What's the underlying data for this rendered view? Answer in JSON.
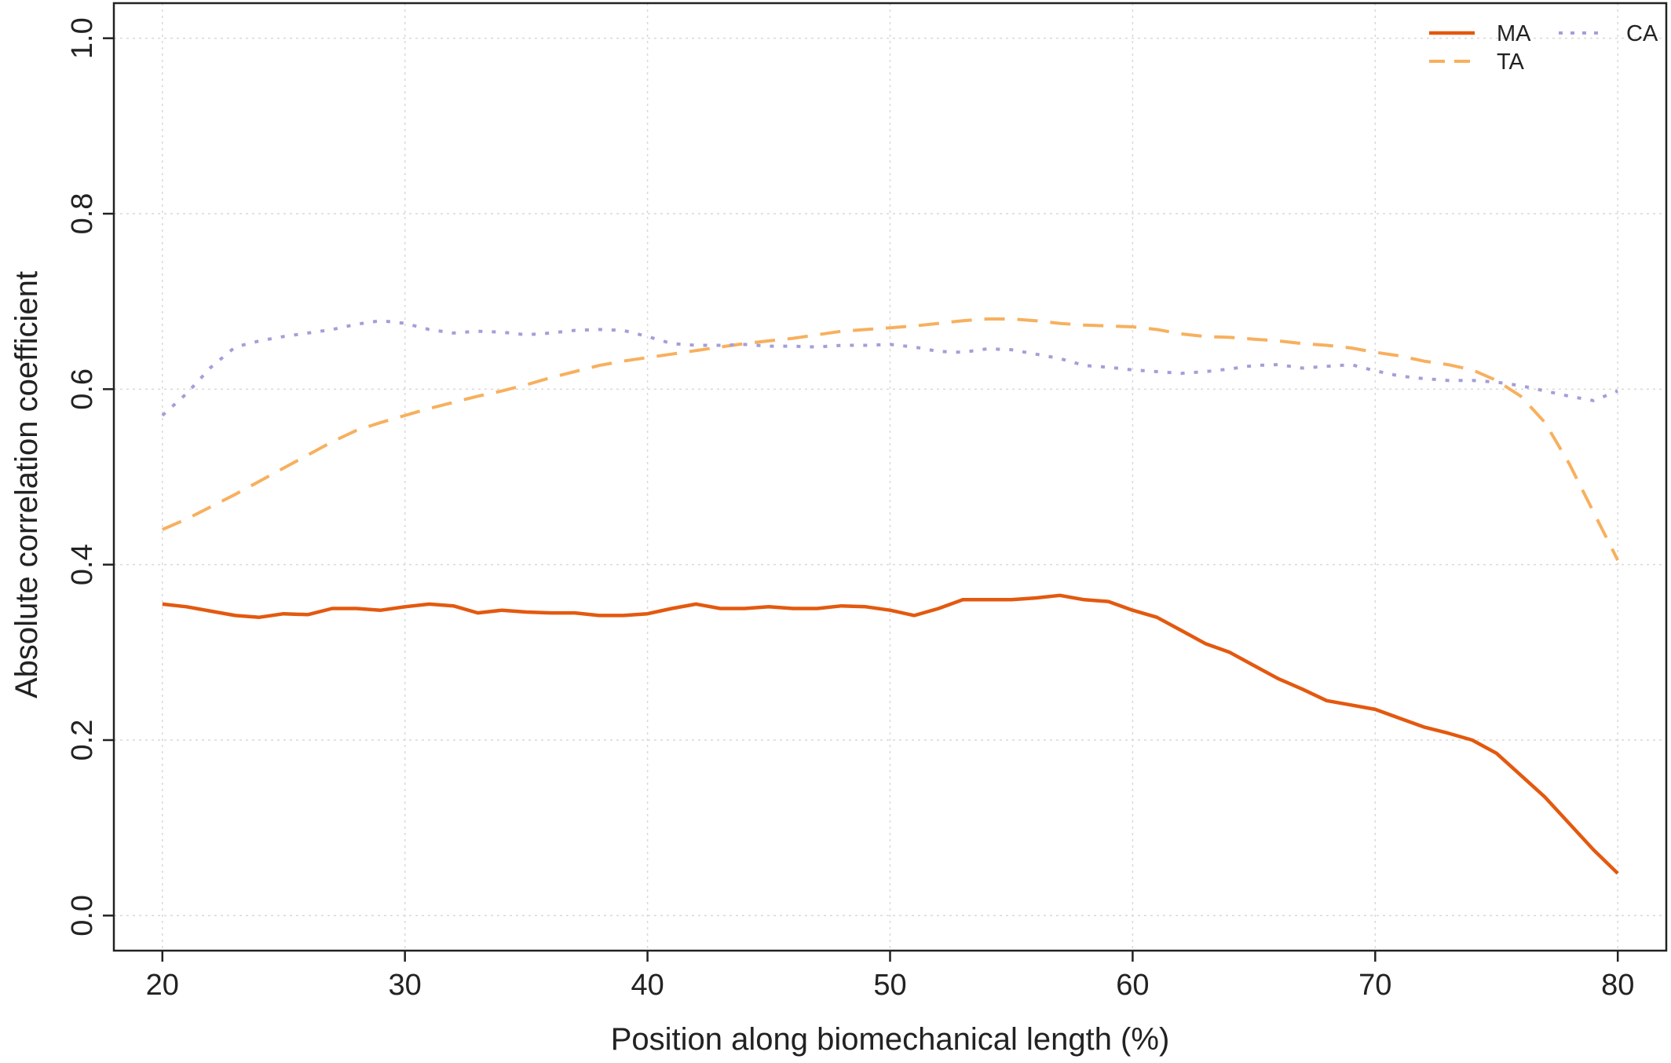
{
  "chart_data": {
    "type": "line",
    "title": "",
    "xlabel": "Position along biomechanical length (%)",
    "ylabel": "Absolute correlation coefficient",
    "xlim": [
      18,
      82
    ],
    "ylim": [
      -0.04,
      1.04
    ],
    "xticks": [
      20,
      30,
      40,
      50,
      60,
      70,
      80
    ],
    "yticks": [
      0.0,
      0.2,
      0.4,
      0.6,
      0.8,
      1.0
    ],
    "xtick_labels": [
      "20",
      "30",
      "40",
      "50",
      "60",
      "70",
      "80"
    ],
    "ytick_labels": [
      "0.0",
      "0.2",
      "0.4",
      "0.6",
      "0.8",
      "1.0"
    ],
    "grid": true,
    "legend_position": "top-right",
    "series": [
      {
        "name": "MA",
        "color": "#e3590f",
        "style": "solid",
        "x": [
          20,
          21,
          22,
          23,
          24,
          25,
          26,
          27,
          28,
          29,
          30,
          31,
          32,
          33,
          34,
          35,
          36,
          37,
          38,
          39,
          40,
          41,
          42,
          43,
          44,
          45,
          46,
          47,
          48,
          49,
          50,
          51,
          52,
          53,
          54,
          55,
          56,
          57,
          58,
          59,
          60,
          61,
          62,
          63,
          64,
          65,
          66,
          67,
          68,
          69,
          70,
          71,
          72,
          73,
          74,
          75,
          76,
          77,
          78,
          79,
          80
        ],
        "values": [
          0.355,
          0.352,
          0.347,
          0.342,
          0.34,
          0.344,
          0.343,
          0.35,
          0.35,
          0.348,
          0.352,
          0.355,
          0.353,
          0.345,
          0.348,
          0.346,
          0.345,
          0.345,
          0.342,
          0.342,
          0.344,
          0.35,
          0.355,
          0.35,
          0.35,
          0.352,
          0.35,
          0.35,
          0.353,
          0.352,
          0.348,
          0.342,
          0.35,
          0.36,
          0.36,
          0.36,
          0.362,
          0.365,
          0.36,
          0.358,
          0.348,
          0.34,
          0.325,
          0.31,
          0.3,
          0.285,
          0.27,
          0.258,
          0.245,
          0.24,
          0.235,
          0.225,
          0.215,
          0.208,
          0.2,
          0.185,
          0.16,
          0.135,
          0.105,
          0.075,
          0.048
        ]
      },
      {
        "name": "TA",
        "color": "#f7b05e",
        "style": "dashed",
        "x": [
          20,
          21,
          22,
          23,
          24,
          25,
          26,
          27,
          28,
          29,
          30,
          31,
          32,
          33,
          34,
          35,
          36,
          37,
          38,
          39,
          40,
          41,
          42,
          43,
          44,
          45,
          46,
          47,
          48,
          49,
          50,
          51,
          52,
          53,
          54,
          55,
          56,
          57,
          58,
          59,
          60,
          61,
          62,
          63,
          64,
          65,
          66,
          67,
          68,
          69,
          70,
          71,
          72,
          73,
          74,
          75,
          76,
          77,
          78,
          79,
          80
        ],
        "values": [
          0.44,
          0.452,
          0.466,
          0.48,
          0.495,
          0.51,
          0.525,
          0.54,
          0.553,
          0.562,
          0.57,
          0.578,
          0.585,
          0.592,
          0.598,
          0.605,
          0.613,
          0.62,
          0.627,
          0.632,
          0.636,
          0.64,
          0.644,
          0.648,
          0.652,
          0.655,
          0.658,
          0.662,
          0.666,
          0.668,
          0.67,
          0.672,
          0.675,
          0.678,
          0.68,
          0.68,
          0.678,
          0.675,
          0.673,
          0.672,
          0.671,
          0.668,
          0.663,
          0.66,
          0.659,
          0.657,
          0.655,
          0.652,
          0.65,
          0.647,
          0.642,
          0.638,
          0.632,
          0.628,
          0.622,
          0.61,
          0.592,
          0.562,
          0.515,
          0.46,
          0.405
        ]
      },
      {
        "name": "CA",
        "color": "#a49fd8",
        "style": "dotted",
        "x": [
          20,
          21,
          22,
          23,
          24,
          25,
          26,
          27,
          28,
          29,
          30,
          31,
          32,
          33,
          34,
          35,
          36,
          37,
          38,
          39,
          40,
          41,
          42,
          43,
          44,
          45,
          46,
          47,
          48,
          49,
          50,
          51,
          52,
          53,
          54,
          55,
          56,
          57,
          58,
          59,
          60,
          61,
          62,
          63,
          64,
          65,
          66,
          67,
          68,
          69,
          70,
          71,
          72,
          73,
          74,
          75,
          76,
          77,
          78,
          79,
          80
        ],
        "values": [
          0.57,
          0.595,
          0.625,
          0.648,
          0.655,
          0.66,
          0.664,
          0.668,
          0.674,
          0.678,
          0.675,
          0.668,
          0.664,
          0.666,
          0.665,
          0.662,
          0.664,
          0.667,
          0.668,
          0.667,
          0.66,
          0.652,
          0.65,
          0.65,
          0.651,
          0.649,
          0.649,
          0.648,
          0.65,
          0.65,
          0.651,
          0.648,
          0.643,
          0.642,
          0.646,
          0.645,
          0.64,
          0.635,
          0.627,
          0.625,
          0.622,
          0.62,
          0.618,
          0.62,
          0.623,
          0.627,
          0.628,
          0.624,
          0.626,
          0.628,
          0.621,
          0.615,
          0.612,
          0.61,
          0.61,
          0.608,
          0.604,
          0.598,
          0.592,
          0.587,
          0.598
        ]
      }
    ]
  }
}
